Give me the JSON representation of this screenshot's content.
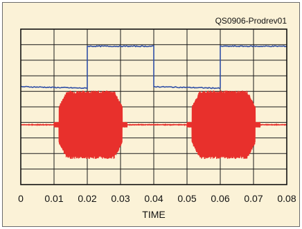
{
  "colors": {
    "background": "#fbf2d7",
    "grid": "#1a1a1a",
    "blue_series": "#2f4fa6",
    "red_series": "#e8302c"
  },
  "chart_data": {
    "type": "line",
    "annotation": "QS0906-Prodrev01",
    "xlabel": "TIME",
    "ylabel": "",
    "xlim": [
      0,
      0.08
    ],
    "ylim": [
      0,
      10
    ],
    "x_ticks": [
      "0",
      "0.01",
      "0.02",
      "0.03",
      "0.04",
      "0.05",
      "0.06",
      "0.07",
      "0.08"
    ],
    "grid": true,
    "series": [
      {
        "kind": "square-wave",
        "color": "#2f4fa6",
        "low_level": 6.3,
        "high_level": 8.9,
        "points": [
          [
            0,
            6.3
          ],
          [
            0.02,
            6.2
          ],
          [
            0.02,
            8.9
          ],
          [
            0.04,
            8.9
          ],
          [
            0.04,
            6.3
          ],
          [
            0.06,
            6.2
          ],
          [
            0.06,
            8.9
          ],
          [
            0.08,
            8.9
          ]
        ]
      },
      {
        "kind": "amplitude-modulated-burst",
        "color": "#e8302c",
        "baseline": 3.85,
        "burst_amplitude": 2.2,
        "bursts": [
          {
            "start": 0.0115,
            "end": 0.0305
          },
          {
            "start": 0.0515,
            "end": 0.0705
          }
        ]
      }
    ]
  }
}
